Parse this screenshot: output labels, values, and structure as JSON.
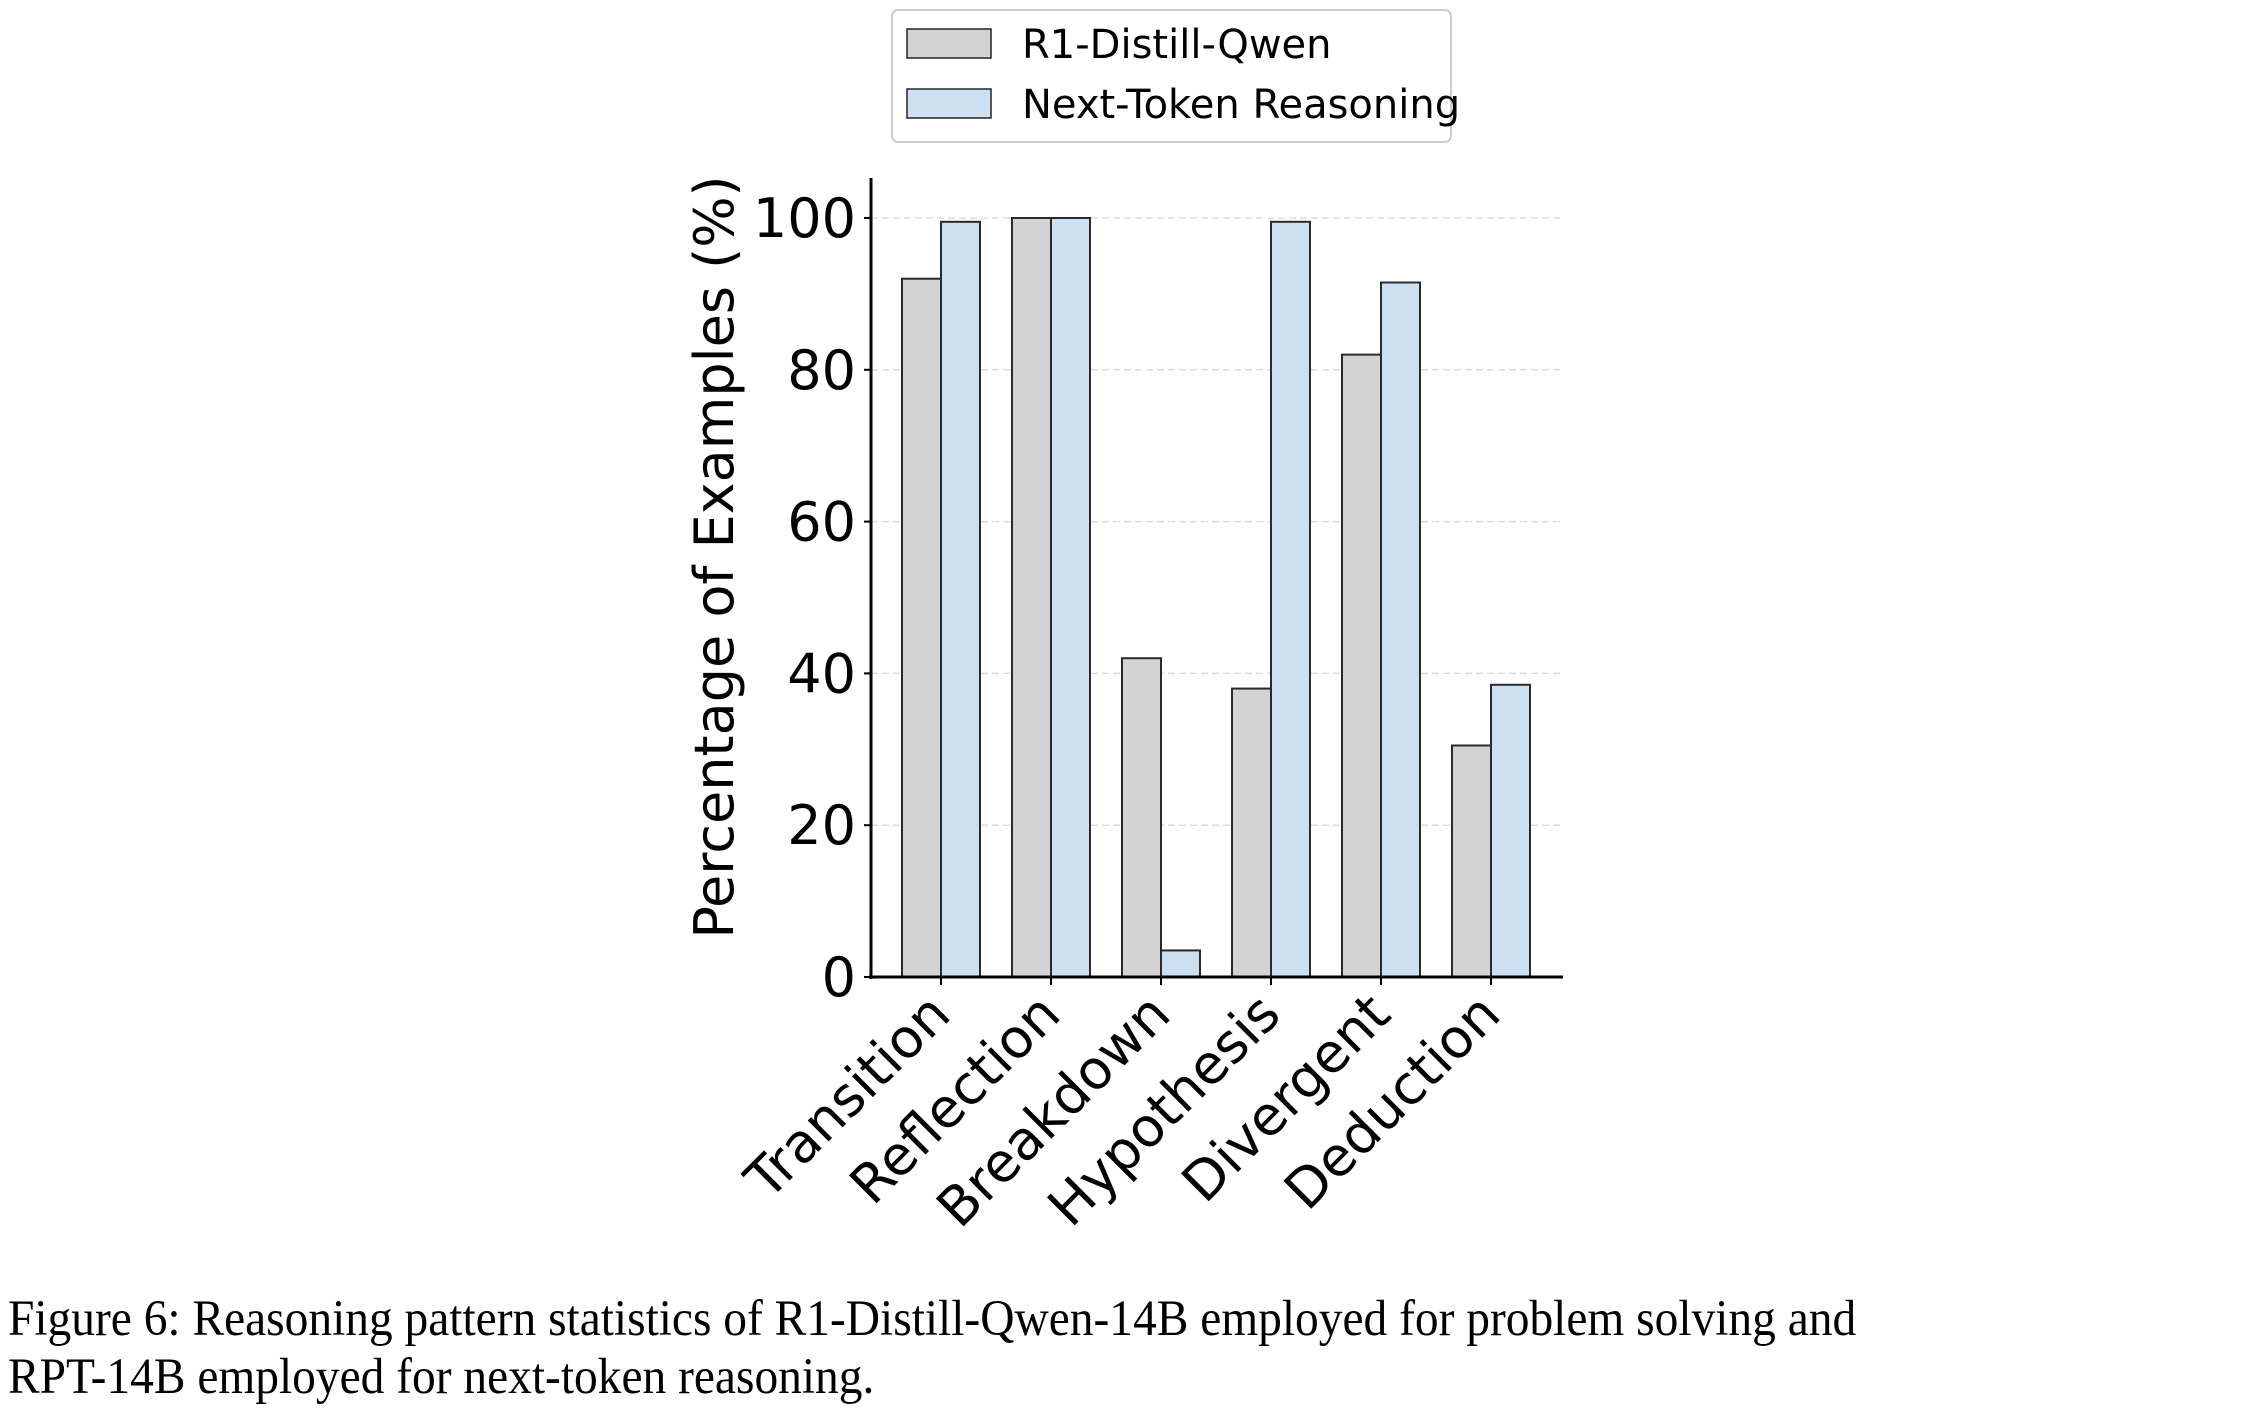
{
  "chart_data": {
    "type": "bar",
    "title": "",
    "xlabel": "",
    "ylabel": "Percentage of Examples (%)",
    "ylim": [
      0,
      105
    ],
    "yticks": [
      0,
      20,
      40,
      60,
      80,
      100
    ],
    "ytick_labels": [
      "0",
      "20",
      "40",
      "60",
      "80",
      "100"
    ],
    "grid": "y, dashed",
    "legend": {
      "placement": "top-center",
      "entries": [
        "R1-Distill-Qwen",
        "Next-Token Reasoning"
      ]
    },
    "categories": [
      "Transition",
      "Reflection",
      "Breakdown",
      "Hypothesis",
      "Divergent",
      "Deduction"
    ],
    "series": [
      {
        "name": "R1-Distill-Qwen",
        "color": "#d3d3d3",
        "values": [
          92.0,
          100.0,
          42.0,
          38.0,
          82.0,
          30.5
        ]
      },
      {
        "name": "Next-Token Reasoning",
        "color": "#cce0f2",
        "values": [
          99.5,
          100.0,
          3.5,
          99.5,
          91.5,
          38.5
        ]
      }
    ]
  },
  "caption": {
    "line1": "Figure 6: Reasoning pattern statistics of R1-Distill-Qwen-14B employed for problem solving and",
    "line2": "RPT-14B employed for next-token reasoning."
  }
}
